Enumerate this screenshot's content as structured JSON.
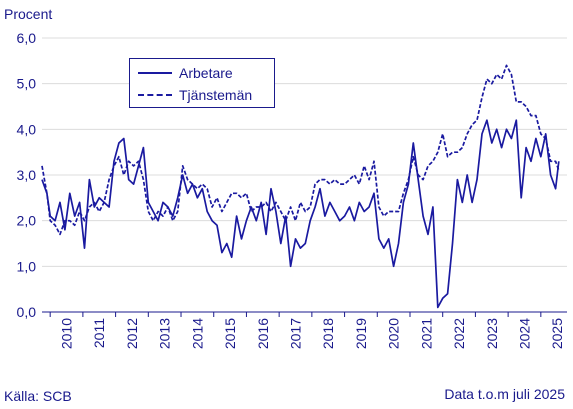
{
  "unit_label": "Procent",
  "source": "Källa: SCB",
  "note": "Data t.o.m juli 2025",
  "colors": {
    "series": "#1a1aa0",
    "axis": "#1a1a8c",
    "grid": "#dcdcdc"
  },
  "chart_data": {
    "type": "line",
    "title": "",
    "xlabel": "",
    "ylabel": "Procent",
    "ylim": [
      0,
      6
    ],
    "y_ticks": [
      "0,0",
      "1,0",
      "2,0",
      "3,0",
      "4,0",
      "5,0",
      "6,0"
    ],
    "x_range": [
      2009.75,
      2025.8
    ],
    "x_ticks": [
      "2010",
      "2011",
      "2012",
      "2013",
      "2014",
      "2015",
      "2016",
      "2017",
      "2018",
      "2019",
      "2020",
      "2021",
      "2022",
      "2023",
      "2024",
      "2025"
    ],
    "grid": true,
    "legend_position": "top-left",
    "series": [
      {
        "name": "Arbetare",
        "style": "solid",
        "x": [
          2009.75,
          2009.9,
          2010.0,
          2010.15,
          2010.3,
          2010.45,
          2010.6,
          2010.75,
          2010.9,
          2011.05,
          2011.2,
          2011.35,
          2011.5,
          2011.65,
          2011.8,
          2011.95,
          2012.1,
          2012.25,
          2012.4,
          2012.55,
          2012.7,
          2012.85,
          2013.0,
          2013.15,
          2013.3,
          2013.45,
          2013.6,
          2013.75,
          2013.9,
          2014.05,
          2014.2,
          2014.35,
          2014.5,
          2014.65,
          2014.8,
          2014.95,
          2015.1,
          2015.25,
          2015.4,
          2015.55,
          2015.7,
          2015.85,
          2016.0,
          2016.15,
          2016.3,
          2016.45,
          2016.6,
          2016.75,
          2016.9,
          2017.05,
          2017.2,
          2017.35,
          2017.5,
          2017.65,
          2017.8,
          2017.95,
          2018.1,
          2018.25,
          2018.4,
          2018.55,
          2018.7,
          2018.85,
          2019.0,
          2019.15,
          2019.3,
          2019.45,
          2019.6,
          2019.75,
          2019.9,
          2020.05,
          2020.2,
          2020.35,
          2020.5,
          2020.65,
          2020.8,
          2020.95,
          2021.1,
          2021.25,
          2021.4,
          2021.55,
          2021.7,
          2021.85,
          2022.0,
          2022.15,
          2022.3,
          2022.45,
          2022.6,
          2022.75,
          2022.9,
          2023.05,
          2023.2,
          2023.35,
          2023.5,
          2023.65,
          2023.8,
          2023.95,
          2024.1,
          2024.25,
          2024.4,
          2024.55,
          2024.7,
          2024.85,
          2025.0,
          2025.15,
          2025.3,
          2025.45,
          2025.55
        ],
        "values": [
          2.9,
          2.6,
          2.1,
          2.0,
          2.4,
          1.8,
          2.6,
          2.1,
          2.4,
          1.4,
          2.9,
          2.3,
          2.5,
          2.4,
          2.3,
          3.3,
          3.7,
          3.8,
          2.9,
          2.8,
          3.2,
          3.6,
          2.4,
          2.2,
          2.0,
          2.4,
          2.3,
          2.1,
          2.5,
          3.0,
          2.6,
          2.8,
          2.5,
          2.7,
          2.2,
          2.0,
          1.9,
          1.3,
          1.5,
          1.2,
          2.1,
          1.6,
          2.0,
          2.3,
          2.0,
          2.4,
          1.7,
          2.7,
          2.2,
          1.5,
          2.1,
          1.0,
          1.6,
          1.4,
          1.5,
          2.0,
          2.3,
          2.7,
          2.1,
          2.4,
          2.2,
          2.0,
          2.1,
          2.3,
          2.0,
          2.4,
          2.2,
          2.3,
          2.6,
          1.6,
          1.4,
          1.6,
          1.0,
          1.5,
          2.4,
          2.8,
          3.7,
          2.9,
          2.1,
          1.7,
          2.3,
          0.1,
          0.3,
          0.4,
          1.5,
          2.9,
          2.4,
          3.0,
          2.4,
          2.9,
          3.9,
          4.2,
          3.7,
          4.0,
          3.6,
          4.0,
          3.8,
          4.2,
          2.5,
          3.6,
          3.3,
          3.8,
          3.4,
          3.9,
          3.0,
          2.7,
          3.3
        ]
      },
      {
        "name": "Tjänstemän",
        "style": "dashed",
        "x": [
          2009.75,
          2009.9,
          2010.0,
          2010.15,
          2010.3,
          2010.45,
          2010.6,
          2010.75,
          2010.9,
          2011.05,
          2011.2,
          2011.35,
          2011.5,
          2011.65,
          2011.8,
          2011.95,
          2012.1,
          2012.25,
          2012.4,
          2012.55,
          2012.7,
          2012.85,
          2013.0,
          2013.15,
          2013.3,
          2013.45,
          2013.6,
          2013.75,
          2013.9,
          2014.05,
          2014.2,
          2014.35,
          2014.5,
          2014.65,
          2014.8,
          2014.95,
          2015.1,
          2015.25,
          2015.4,
          2015.55,
          2015.7,
          2015.85,
          2016.0,
          2016.15,
          2016.3,
          2016.45,
          2016.6,
          2016.75,
          2016.9,
          2017.05,
          2017.2,
          2017.35,
          2017.5,
          2017.65,
          2017.8,
          2017.95,
          2018.1,
          2018.25,
          2018.4,
          2018.55,
          2018.7,
          2018.85,
          2019.0,
          2019.15,
          2019.3,
          2019.45,
          2019.6,
          2019.75,
          2019.9,
          2020.05,
          2020.2,
          2020.35,
          2020.5,
          2020.65,
          2020.8,
          2020.95,
          2021.1,
          2021.25,
          2021.4,
          2021.55,
          2021.7,
          2021.85,
          2022.0,
          2022.15,
          2022.3,
          2022.45,
          2022.6,
          2022.75,
          2022.9,
          2023.05,
          2023.2,
          2023.35,
          2023.5,
          2023.65,
          2023.8,
          2023.95,
          2024.1,
          2024.25,
          2024.4,
          2024.55,
          2024.7,
          2024.85,
          2025.0,
          2025.15,
          2025.3,
          2025.45,
          2025.55
        ],
        "values": [
          3.2,
          2.6,
          2.0,
          1.9,
          1.7,
          2.0,
          2.0,
          1.9,
          2.2,
          2.0,
          2.3,
          2.4,
          2.2,
          2.4,
          2.9,
          3.2,
          3.4,
          3.0,
          3.3,
          3.2,
          3.3,
          2.9,
          2.2,
          2.0,
          2.2,
          2.1,
          2.3,
          2.0,
          2.2,
          3.2,
          2.9,
          2.8,
          2.7,
          2.8,
          2.7,
          2.3,
          2.5,
          2.2,
          2.4,
          2.6,
          2.6,
          2.5,
          2.6,
          2.2,
          2.3,
          2.3,
          2.4,
          2.2,
          2.4,
          2.2,
          2.0,
          2.3,
          2.0,
          2.4,
          2.2,
          2.3,
          2.8,
          2.9,
          2.9,
          2.8,
          2.9,
          2.8,
          2.8,
          2.9,
          3.0,
          2.8,
          3.2,
          2.9,
          3.3,
          2.3,
          2.1,
          2.2,
          2.2,
          2.2,
          2.6,
          2.9,
          3.4,
          3.0,
          2.9,
          3.2,
          3.3,
          3.5,
          3.9,
          3.4,
          3.5,
          3.5,
          3.6,
          3.9,
          4.1,
          4.2,
          4.7,
          5.1,
          5.0,
          5.2,
          5.1,
          5.4,
          5.2,
          4.6,
          4.6,
          4.5,
          4.3,
          4.3,
          3.9,
          3.8,
          3.3,
          3.3,
          3.1
        ]
      }
    ]
  }
}
